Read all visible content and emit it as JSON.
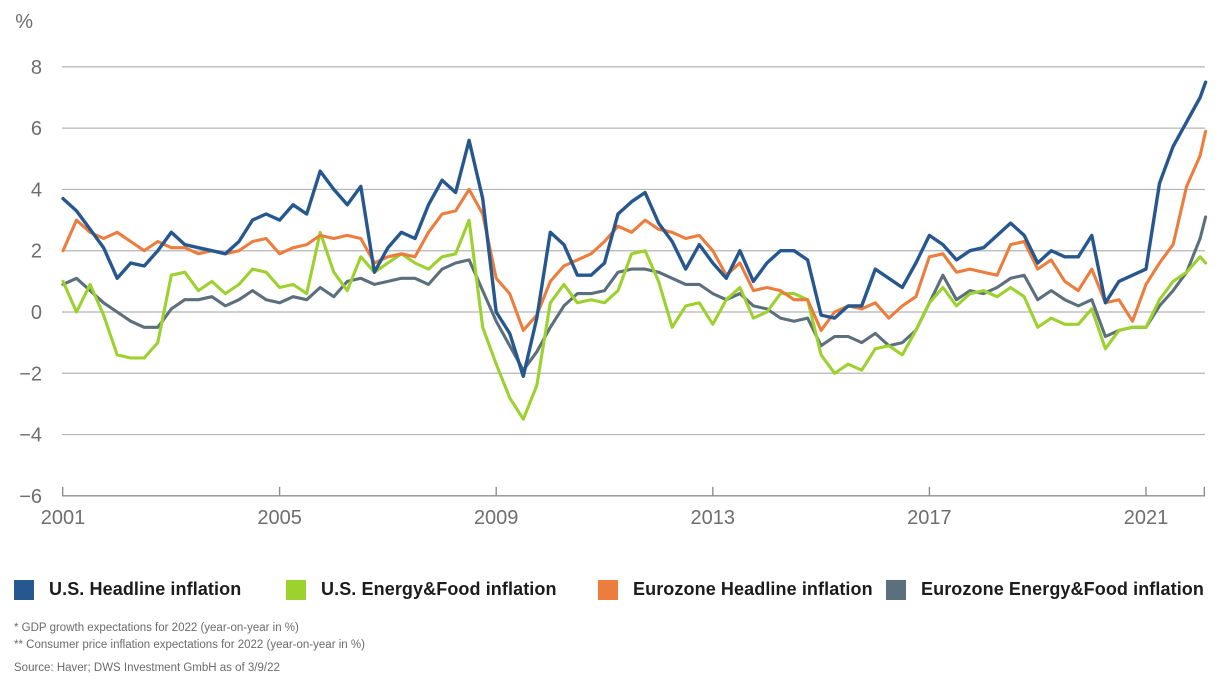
{
  "page": {
    "background": "#ffffff"
  },
  "axis": {
    "unit_label": "%",
    "y_tick_labels": [
      "8",
      "6",
      "4",
      "2",
      "0",
      "−2",
      "−4",
      "−6"
    ],
    "x_tick_labels": [
      "2001",
      "2005",
      "2009",
      "2013",
      "2017",
      "2021"
    ]
  },
  "legend": {
    "items": [
      {
        "label": "U.S. Headline inflation",
        "color": "#26578e"
      },
      {
        "label": "U.S. Energy&Food inflation",
        "color": "#9cd12e"
      },
      {
        "label": "Eurozone Headline inflation",
        "color": "#ec7d3c"
      },
      {
        "label": "Eurozone Energy&Food inflation",
        "color": "#5c6f7d"
      }
    ]
  },
  "footnotes": {
    "line1": "* GDP growth expectations for 2022 (year-on-year in %)",
    "line2": "** Consumer price inflation expectations for 2022 (year-on-year in %)",
    "source": "Source: Haver; DWS Investment GmbH as of 3/9/22"
  },
  "chart_data": {
    "type": "line",
    "title": "",
    "xlabel": "",
    "ylabel": "%",
    "x_start": 2001.0,
    "x_step": 0.25,
    "x_end": 2022.1,
    "x_range": [
      2001.0,
      2022.1
    ],
    "ylim": [
      -6,
      8
    ],
    "y_ticks": [
      8,
      6,
      4,
      2,
      0,
      -2,
      -4,
      -6
    ],
    "x_ticks": [
      2001,
      2005,
      2009,
      2013,
      2017,
      2021
    ],
    "grid": "horizontal",
    "legend_position": "bottom",
    "colors": {
      "grid": "#b4b4b4",
      "axis": "#8f8f8f",
      "tick_text": "#6e6e6e"
    },
    "series": [
      {
        "name": "Eurozone Energy&Food inflation",
        "color": "#5c6f7d",
        "values": [
          0.9,
          1.1,
          0.7,
          0.3,
          0.0,
          -0.3,
          -0.5,
          -0.5,
          0.1,
          0.4,
          0.4,
          0.5,
          0.2,
          0.4,
          0.7,
          0.4,
          0.3,
          0.5,
          0.4,
          0.8,
          0.5,
          1.0,
          1.1,
          0.9,
          1.0,
          1.1,
          1.1,
          0.9,
          1.4,
          1.6,
          1.7,
          0.7,
          -0.3,
          -1.1,
          -1.9,
          -1.3,
          -0.5,
          0.2,
          0.6,
          0.6,
          0.7,
          1.3,
          1.4,
          1.4,
          1.3,
          1.1,
          0.9,
          0.9,
          0.6,
          0.4,
          0.6,
          0.2,
          0.1,
          -0.2,
          -0.3,
          -0.2,
          -1.1,
          -0.8,
          -0.8,
          -1.0,
          -0.7,
          -1.1,
          -1.0,
          -0.6,
          0.3,
          1.2,
          0.4,
          0.7,
          0.6,
          0.8,
          1.1,
          1.2,
          0.4,
          0.7,
          0.4,
          0.2,
          0.4,
          -0.8,
          -0.6,
          -0.5,
          -0.5,
          0.2,
          0.7,
          1.3,
          2.4,
          3.1
        ]
      },
      {
        "name": "U.S. Energy&Food inflation",
        "color": "#9cd12e",
        "values": [
          1.0,
          0.0,
          0.9,
          -0.1,
          -1.4,
          -1.5,
          -1.5,
          -1.0,
          1.2,
          1.3,
          0.7,
          1.0,
          0.6,
          0.9,
          1.4,
          1.3,
          0.8,
          0.9,
          0.6,
          2.6,
          1.3,
          0.7,
          1.8,
          1.3,
          1.6,
          1.9,
          1.6,
          1.4,
          1.8,
          1.9,
          3.0,
          -0.5,
          -1.7,
          -2.8,
          -3.5,
          -2.4,
          0.3,
          0.9,
          0.3,
          0.4,
          0.3,
          0.7,
          1.9,
          2.0,
          1.0,
          -0.5,
          0.2,
          0.3,
          -0.4,
          0.4,
          0.8,
          -0.2,
          0.0,
          0.6,
          0.6,
          0.4,
          -1.4,
          -2.0,
          -1.7,
          -1.9,
          -1.2,
          -1.1,
          -1.4,
          -0.6,
          0.3,
          0.8,
          0.2,
          0.6,
          0.7,
          0.5,
          0.8,
          0.5,
          -0.5,
          -0.2,
          -0.4,
          -0.4,
          0.1,
          -1.2,
          -0.6,
          -0.5,
          -0.5,
          0.4,
          1.0,
          1.3,
          1.8,
          1.6
        ]
      },
      {
        "name": "Eurozone Headline inflation",
        "color": "#ec7d3c",
        "values": [
          2.0,
          3.0,
          2.6,
          2.4,
          2.6,
          2.3,
          2.0,
          2.3,
          2.1,
          2.1,
          1.9,
          2.0,
          1.9,
          2.0,
          2.3,
          2.4,
          1.9,
          2.1,
          2.2,
          2.5,
          2.4,
          2.5,
          2.4,
          1.6,
          1.8,
          1.9,
          1.8,
          2.6,
          3.2,
          3.3,
          4.0,
          3.2,
          1.1,
          0.6,
          -0.6,
          -0.1,
          1.0,
          1.5,
          1.7,
          1.9,
          2.3,
          2.8,
          2.6,
          3.0,
          2.7,
          2.6,
          2.4,
          2.5,
          2.0,
          1.2,
          1.6,
          0.7,
          0.8,
          0.7,
          0.4,
          0.4,
          -0.6,
          0.0,
          0.2,
          0.1,
          0.3,
          -0.2,
          0.2,
          0.5,
          1.8,
          1.9,
          1.3,
          1.4,
          1.3,
          1.2,
          2.2,
          2.3,
          1.4,
          1.7,
          1.0,
          0.7,
          1.4,
          0.3,
          0.4,
          -0.3,
          0.9,
          1.6,
          2.2,
          4.1,
          5.1,
          5.9
        ]
      },
      {
        "name": "U.S. Headline inflation",
        "color": "#26578e",
        "values": [
          3.7,
          3.3,
          2.7,
          2.1,
          1.1,
          1.6,
          1.5,
          2.0,
          2.6,
          2.2,
          2.1,
          2.0,
          1.9,
          2.3,
          3.0,
          3.2,
          3.0,
          3.5,
          3.2,
          4.6,
          4.0,
          3.5,
          4.1,
          1.3,
          2.1,
          2.6,
          2.4,
          3.5,
          4.3,
          3.9,
          5.6,
          3.7,
          0.0,
          -0.7,
          -2.1,
          -0.2,
          2.6,
          2.2,
          1.2,
          1.2,
          1.6,
          3.2,
          3.6,
          3.9,
          2.9,
          2.3,
          1.4,
          2.2,
          1.6,
          1.1,
          2.0,
          1.0,
          1.6,
          2.0,
          2.0,
          1.7,
          -0.1,
          -0.2,
          0.2,
          0.2,
          1.4,
          1.1,
          0.8,
          1.6,
          2.5,
          2.2,
          1.7,
          2.0,
          2.1,
          2.5,
          2.9,
          2.5,
          1.6,
          2.0,
          1.8,
          1.8,
          2.5,
          0.3,
          1.0,
          1.2,
          1.4,
          4.2,
          5.4,
          6.2,
          7.0,
          7.5
        ]
      }
    ]
  }
}
